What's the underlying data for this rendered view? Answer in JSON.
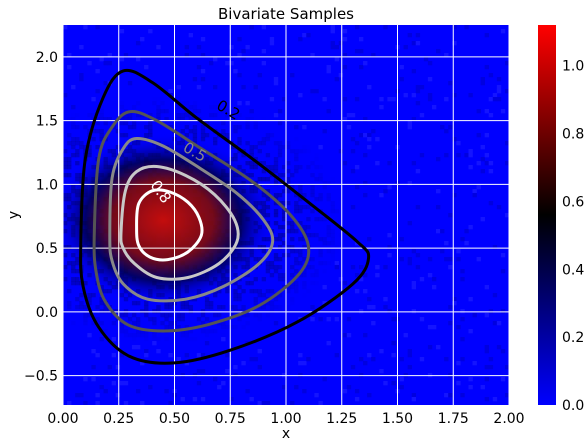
{
  "chart_data": {
    "type": "heatmap",
    "title": "Bivariate Samples",
    "xlabel": "x",
    "ylabel": "y",
    "xlim": [
      0.0,
      2.0
    ],
    "ylim": [
      -0.73,
      2.25
    ],
    "xticks": [
      0.0,
      0.25,
      0.5,
      0.75,
      1.0,
      1.25,
      1.5,
      1.75,
      2.0
    ],
    "xtick_labels": [
      "0.00",
      "0.25",
      "0.50",
      "0.75",
      "1.00",
      "1.25",
      "1.50",
      "1.75",
      "2.00"
    ],
    "yticks": [
      -0.5,
      0.0,
      0.5,
      1.0,
      1.5,
      2.0
    ],
    "ytick_labels": [
      "−0.5",
      "0.0",
      "0.5",
      "1.0",
      "1.5",
      "2.0"
    ],
    "grid": true,
    "density_peak": {
      "x": 0.45,
      "y": 0.72
    },
    "colorbar": {
      "range": [
        0.0,
        1.12
      ],
      "ticks": [
        0.0,
        0.2,
        0.4,
        0.6,
        0.8,
        1.0
      ],
      "tick_labels": [
        "0.0",
        "0.2",
        "0.4",
        "0.6",
        "0.8",
        "1.0"
      ],
      "colors": [
        "#0000ff",
        "#000000",
        "#ff0000"
      ]
    },
    "contours": [
      {
        "level": 0.2,
        "label": "0.2",
        "color": "#000000",
        "points": [
          [
            0.08,
            0.55
          ],
          [
            0.1,
            1.2
          ],
          [
            0.18,
            1.68
          ],
          [
            0.27,
            1.89
          ],
          [
            0.4,
            1.8
          ],
          [
            0.6,
            1.52
          ],
          [
            0.85,
            1.2
          ],
          [
            1.1,
            0.86
          ],
          [
            1.32,
            0.55
          ],
          [
            1.37,
            0.42
          ],
          [
            1.3,
            0.22
          ],
          [
            1.05,
            -0.08
          ],
          [
            0.75,
            -0.3
          ],
          [
            0.5,
            -0.4
          ],
          [
            0.3,
            -0.35
          ],
          [
            0.16,
            -0.12
          ],
          [
            0.09,
            0.2
          ]
        ]
      },
      {
        "level": 0.35,
        "label": "",
        "color": "#555555",
        "points": [
          [
            0.14,
            0.58
          ],
          [
            0.16,
            1.2
          ],
          [
            0.22,
            1.45
          ],
          [
            0.3,
            1.57
          ],
          [
            0.42,
            1.5
          ],
          [
            0.62,
            1.28
          ],
          [
            0.85,
            1.02
          ],
          [
            1.02,
            0.76
          ],
          [
            1.1,
            0.52
          ],
          [
            1.06,
            0.3
          ],
          [
            0.88,
            0.05
          ],
          [
            0.65,
            -0.1
          ],
          [
            0.45,
            -0.15
          ],
          [
            0.29,
            -0.1
          ],
          [
            0.19,
            0.08
          ],
          [
            0.15,
            0.3
          ]
        ]
      },
      {
        "level": 0.5,
        "label": "0.5",
        "color": "#888888",
        "points": [
          [
            0.21,
            0.6
          ],
          [
            0.22,
            1.05
          ],
          [
            0.27,
            1.28
          ],
          [
            0.33,
            1.36
          ],
          [
            0.45,
            1.3
          ],
          [
            0.62,
            1.12
          ],
          [
            0.78,
            0.93
          ],
          [
            0.9,
            0.72
          ],
          [
            0.94,
            0.55
          ],
          [
            0.88,
            0.38
          ],
          [
            0.72,
            0.2
          ],
          [
            0.55,
            0.1
          ],
          [
            0.38,
            0.1
          ],
          [
            0.27,
            0.22
          ],
          [
            0.22,
            0.4
          ]
        ]
      },
      {
        "level": 0.65,
        "label": "",
        "color": "#c8c8c8",
        "points": [
          [
            0.26,
            0.62
          ],
          [
            0.28,
            0.95
          ],
          [
            0.33,
            1.1
          ],
          [
            0.42,
            1.14
          ],
          [
            0.55,
            1.07
          ],
          [
            0.68,
            0.92
          ],
          [
            0.77,
            0.72
          ],
          [
            0.78,
            0.55
          ],
          [
            0.7,
            0.38
          ],
          [
            0.56,
            0.27
          ],
          [
            0.42,
            0.27
          ],
          [
            0.32,
            0.38
          ],
          [
            0.27,
            0.5
          ]
        ]
      },
      {
        "level": 0.8,
        "label": "0.8",
        "color": "#ffffff",
        "points": [
          [
            0.33,
            0.66
          ],
          [
            0.34,
            0.85
          ],
          [
            0.4,
            0.95
          ],
          [
            0.48,
            0.94
          ],
          [
            0.56,
            0.86
          ],
          [
            0.61,
            0.74
          ],
          [
            0.62,
            0.6
          ],
          [
            0.56,
            0.47
          ],
          [
            0.47,
            0.41
          ],
          [
            0.39,
            0.43
          ],
          [
            0.34,
            0.52
          ]
        ]
      }
    ]
  }
}
